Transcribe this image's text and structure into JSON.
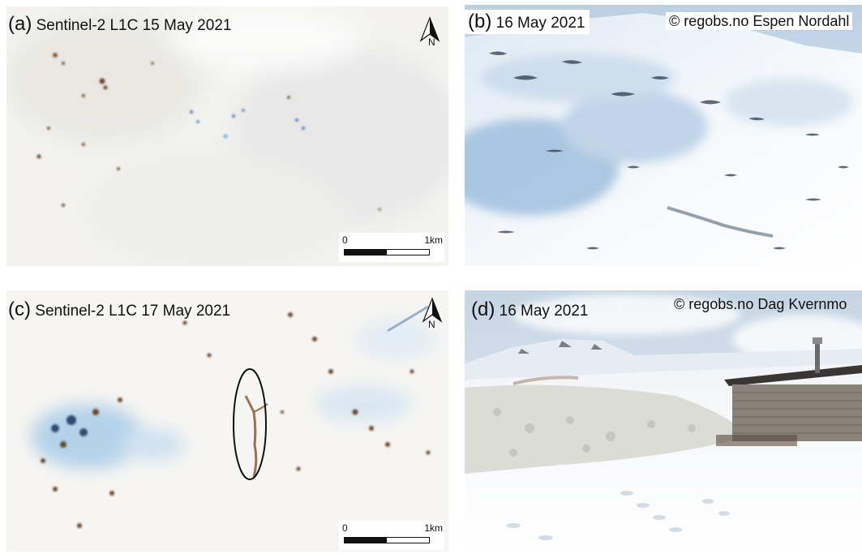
{
  "panels": {
    "a": {
      "letter": "(a)",
      "caption": "Sentinel-2 L1C  15 May 2021",
      "north": "N",
      "scale_start": "0",
      "scale_end": "1km",
      "north_icon": "north-arrow-icon"
    },
    "b": {
      "letter": "(b)",
      "caption": "16 May 2021",
      "credit": "© regobs.no Espen Nordahl"
    },
    "c": {
      "letter": "(c)",
      "caption": "Sentinel-2 L1C  17 May 2021",
      "north": "N",
      "scale_start": "0",
      "scale_end": "1km",
      "north_icon": "north-arrow-icon"
    },
    "d": {
      "letter": "(d)",
      "caption": "16 May 2021",
      "credit": "© regobs.no Dag Kvernmo"
    }
  },
  "colors": {
    "snow": "#f6f6f4",
    "rock": "#6b4a2a",
    "wet_snow": "#5d8fbf",
    "sky": "#dfe8ef",
    "cabin": "#7d7872"
  }
}
